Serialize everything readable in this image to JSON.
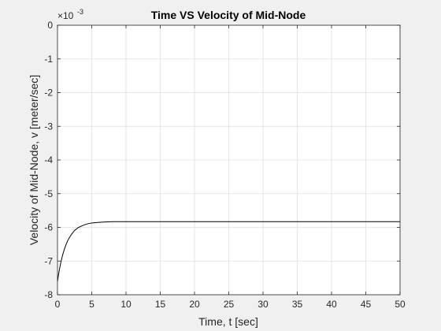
{
  "chart_data": {
    "type": "line",
    "title": "Time VS Velocity of Mid-Node",
    "xlabel": "Time, t [sec]",
    "ylabel": "Velocity of Mid-Node, v [meter/sec]",
    "y_exponent_base": "×10",
    "y_exponent_power": "-3",
    "xlim": [
      0,
      50
    ],
    "ylim": [
      -8,
      0
    ],
    "x_ticks": [
      0,
      5,
      10,
      15,
      20,
      25,
      30,
      35,
      40,
      45,
      50
    ],
    "y_ticks": [
      0,
      -1,
      -2,
      -3,
      -4,
      -5,
      -6,
      -7,
      -8
    ],
    "y_tick_labels": [
      "0",
      "-1",
      "-2",
      "-3",
      "-4",
      "-5",
      "-6",
      "-7",
      "-8"
    ],
    "grid": true,
    "line_color": "#000000",
    "series": [
      {
        "x": [
          0,
          0.25,
          0.5,
          0.75,
          1,
          1.25,
          1.5,
          1.75,
          2,
          2.5,
          3,
          3.5,
          4,
          4.5,
          5,
          6,
          7,
          8,
          10,
          15,
          20,
          30,
          40,
          50
        ],
        "values": [
          -7.6,
          -7.28,
          -7.03,
          -6.82,
          -6.65,
          -6.51,
          -6.39,
          -6.3,
          -6.22,
          -6.09,
          -6.01,
          -5.96,
          -5.92,
          -5.89,
          -5.87,
          -5.85,
          -5.84,
          -5.83,
          -5.83,
          -5.83,
          -5.83,
          -5.83,
          -5.83,
          -5.83
        ]
      }
    ]
  }
}
